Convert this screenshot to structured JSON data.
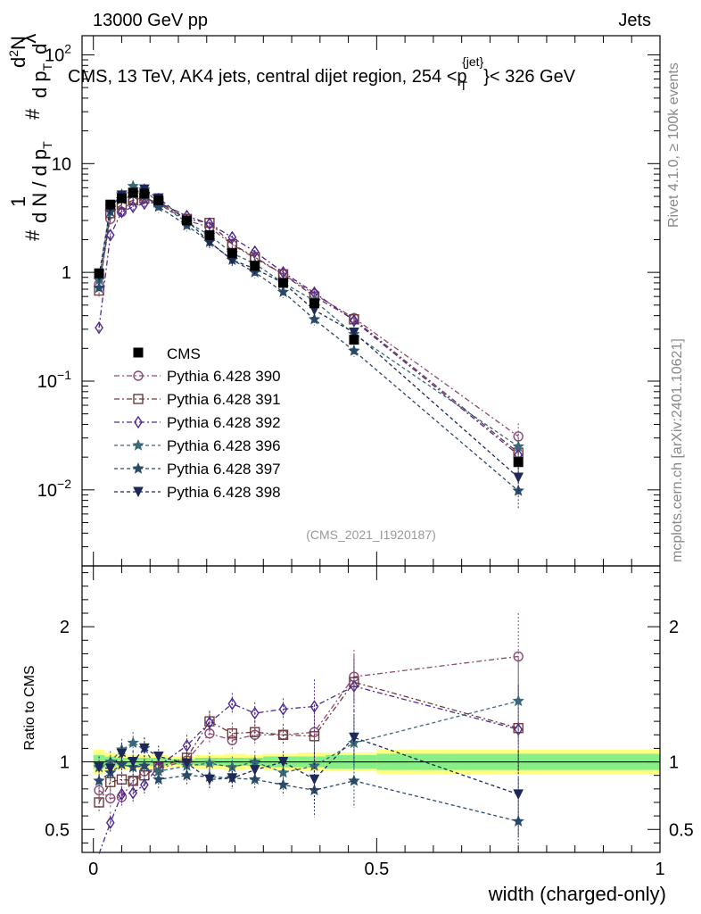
{
  "header": {
    "energy_label": "13000 GeV pp",
    "category_label": "Jets"
  },
  "side_labels": {
    "rivet": "Rivet 4.1.0, ≥ 100k events",
    "mcplots": "mcplots.cern.ch [arXiv:2401.10621]"
  },
  "analysis_id": "(CMS_2021_I1920187)",
  "chart_data": [
    {
      "id": "main",
      "type": "scatter",
      "title": "CMS, 13 TeV, AK4 jets, central dijet region, 254 < p_T^{jet} < 326 GeV",
      "title_parts": {
        "pre": "CMS, 13 TeV, AK4 jets, central dijet region, 254 <p",
        "sup": "{jet}",
        "sub": "T",
        "post": "}< 326 GeV"
      },
      "ylabel": "1/dN/dp_T # d^2N/dp_T dλ",
      "ylabel_parts": {
        "a": "#",
        "b": "1",
        "c": "d N / d p",
        "c_sub": "T",
        "d": "#",
        "e": "d",
        "e_sup": "2",
        "f": "N",
        "g": "d p",
        "g_sub": "T",
        "h": "d",
        "i": "λ"
      },
      "yscale": "log",
      "ylim": [
        0.002,
        150
      ],
      "yticks": [
        {
          "value": 0.01,
          "base": "10",
          "exp": "−2"
        },
        {
          "value": 0.1,
          "base": "10",
          "exp": "−1"
        },
        {
          "value": 1,
          "base": "1",
          "exp": ""
        },
        {
          "value": 10,
          "base": "10",
          "exp": ""
        },
        {
          "value": 100,
          "base": "10",
          "exp": "2"
        }
      ],
      "xlim": [
        -0.02,
        1.0
      ],
      "legend_position": "left",
      "x": [
        0.01,
        0.03,
        0.05,
        0.07,
        0.09,
        0.115,
        0.165,
        0.205,
        0.245,
        0.285,
        0.335,
        0.39,
        0.46,
        0.75
      ],
      "data": {
        "name": "CMS",
        "y": [
          0.98,
          4.2,
          4.8,
          5.4,
          5.3,
          4.6,
          3.0,
          2.2,
          1.5,
          1.15,
          0.8,
          0.52,
          0.24,
          0.018
        ]
      },
      "series": [
        {
          "name": "Pythia 6.428 390",
          "color": "#8a4a72",
          "marker": "circle",
          "dash": "6,3,2,3",
          "y": [
            0.78,
            3.1,
            3.6,
            4.6,
            4.9,
            4.3,
            3.0,
            2.6,
            1.8,
            1.35,
            0.96,
            0.63,
            0.38,
            0.031
          ]
        },
        {
          "name": "Pythia 6.428 391",
          "color": "#6e3a3a",
          "marker": "square",
          "dash": "6,3,2,3",
          "y": [
            0.68,
            3.5,
            4.2,
            4.6,
            4.8,
            4.4,
            3.1,
            2.85,
            1.82,
            1.38,
            0.96,
            0.6,
            0.37,
            0.022
          ]
        },
        {
          "name": "Pythia 6.428 392",
          "color": "#4e2a8e",
          "marker": "diamond",
          "dash": "6,3,2,3",
          "y": [
            0.31,
            2.2,
            3.6,
            4.0,
            4.3,
            4.4,
            3.3,
            2.8,
            2.1,
            1.55,
            1.0,
            0.65,
            0.36,
            0.021
          ]
        },
        {
          "name": "Pythia 6.428 396",
          "color": "#3a6878",
          "marker": "star",
          "dash": "4,3",
          "y": [
            0.85,
            4.0,
            5.2,
            6.2,
            5.8,
            4.3,
            2.9,
            2.2,
            1.5,
            1.2,
            0.8,
            0.55,
            0.27,
            0.025
          ]
        },
        {
          "name": "Pythia 6.428 397",
          "color": "#2a4a6a",
          "marker": "star",
          "dash": "4,3",
          "y": [
            0.72,
            3.6,
            4.7,
            5.2,
            5.1,
            4.0,
            2.7,
            1.9,
            1.3,
            1.0,
            0.66,
            0.37,
            0.19,
            0.0098
          ]
        },
        {
          "name": "Pythia 6.428 398",
          "color": "#1e2858",
          "marker": "triangle-down",
          "dash": "4,3",
          "y": [
            0.93,
            4.0,
            5.1,
            5.4,
            5.8,
            4.8,
            3.0,
            1.9,
            1.3,
            1.08,
            0.8,
            0.45,
            0.28,
            0.013
          ]
        }
      ]
    },
    {
      "id": "ratio",
      "type": "scatter",
      "ylabel": "Ratio to CMS",
      "xlabel": "width (charged-only)",
      "ylim": [
        0.33,
        2.45
      ],
      "yticks": [
        {
          "value": 0.5,
          "label": "0.5"
        },
        {
          "value": 1,
          "label": "1"
        },
        {
          "value": 2,
          "label": "2"
        }
      ],
      "xlim": [
        -0.02,
        1.0
      ],
      "xticks": [
        {
          "value": 0,
          "label": "0"
        },
        {
          "value": 0.5,
          "label": "0.5"
        },
        {
          "value": 1,
          "label": "1"
        }
      ],
      "uncertainty_bands": [
        {
          "x0": 0.0,
          "x1": 0.02,
          "stat": 0.05,
          "total": 0.09
        },
        {
          "x0": 0.02,
          "x1": 0.04,
          "stat": 0.04,
          "total": 0.07
        },
        {
          "x0": 0.04,
          "x1": 0.06,
          "stat": 0.03,
          "total": 0.06
        },
        {
          "x0": 0.06,
          "x1": 0.08,
          "stat": 0.03,
          "total": 0.05
        },
        {
          "x0": 0.08,
          "x1": 0.1,
          "stat": 0.03,
          "total": 0.05
        },
        {
          "x0": 0.1,
          "x1": 0.13,
          "stat": 0.03,
          "total": 0.05
        },
        {
          "x0": 0.13,
          "x1": 0.15,
          "stat": 0.02,
          "total": 0.04
        },
        {
          "x0": 0.15,
          "x1": 0.18,
          "stat": 0.02,
          "total": 0.04
        },
        {
          "x0": 0.18,
          "x1": 0.23,
          "stat": 0.03,
          "total": 0.05
        },
        {
          "x0": 0.23,
          "x1": 0.27,
          "stat": 0.03,
          "total": 0.06
        },
        {
          "x0": 0.27,
          "x1": 0.3,
          "stat": 0.03,
          "total": 0.05
        },
        {
          "x0": 0.3,
          "x1": 0.36,
          "stat": 0.04,
          "total": 0.06
        },
        {
          "x0": 0.36,
          "x1": 0.41,
          "stat": 0.04,
          "total": 0.07
        },
        {
          "x0": 0.41,
          "x1": 0.5,
          "stat": 0.05,
          "total": 0.07
        },
        {
          "x0": 0.5,
          "x1": 1.0,
          "stat": 0.06,
          "total": 0.09
        }
      ],
      "x": [
        0.01,
        0.03,
        0.05,
        0.07,
        0.09,
        0.115,
        0.165,
        0.205,
        0.245,
        0.285,
        0.335,
        0.39,
        0.46,
        0.75
      ],
      "series": [
        {
          "name": "Pythia 6.428 390",
          "y": [
            0.79,
            0.73,
            0.74,
            0.86,
            0.93,
            0.95,
            1.01,
            1.21,
            1.16,
            1.2,
            1.2,
            1.22,
            1.63,
            1.78
          ]
        },
        {
          "name": "Pythia 6.428 391",
          "y": [
            0.7,
            0.85,
            0.87,
            0.86,
            0.9,
            0.96,
            1.03,
            1.3,
            1.21,
            1.22,
            1.2,
            1.19,
            1.59,
            1.25
          ]
        },
        {
          "name": "Pythia 6.428 392",
          "y": [
            0.32,
            0.55,
            0.76,
            0.77,
            0.83,
            0.97,
            1.12,
            1.29,
            1.43,
            1.36,
            1.39,
            1.41,
            1.56,
            1.24
          ]
        },
        {
          "name": "Pythia 6.428 396",
          "y": [
            0.96,
            1.0,
            1.09,
            1.14,
            1.1,
            0.93,
            0.97,
            0.99,
            0.96,
            1.0,
            0.92,
            0.97,
            1.14,
            1.45
          ]
        },
        {
          "name": "Pythia 6.428 397",
          "y": [
            0.86,
            0.92,
            0.98,
            0.96,
            0.97,
            0.87,
            0.9,
            0.89,
            0.88,
            0.87,
            0.83,
            0.79,
            0.86,
            0.56
          ]
        },
        {
          "name": "Pythia 6.428 398",
          "y": [
            0.96,
            0.95,
            1.06,
            1.0,
            1.1,
            1.04,
            0.99,
            0.87,
            0.88,
            0.94,
            1.0,
            0.87,
            1.18,
            0.76
          ]
        }
      ]
    }
  ]
}
